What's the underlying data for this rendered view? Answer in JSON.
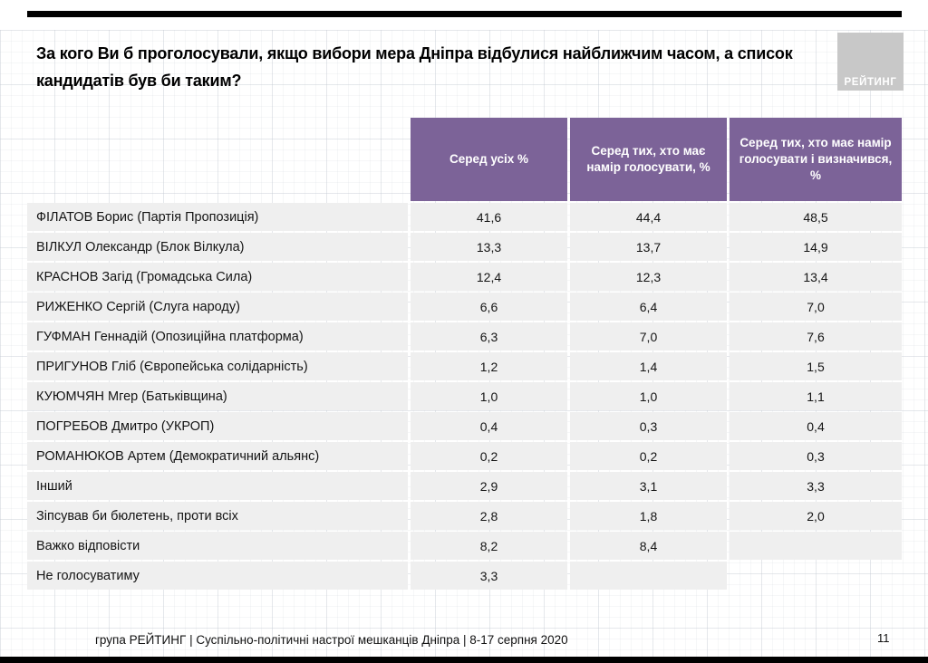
{
  "page": {
    "title": "За кого Ви б проголосували, якщо вибори мера Дніпра відбулися найближчим часом, а список кандидатів був би таким?",
    "logo_text": "РЕЙТИНГ",
    "footer_text": "група РЕЙТИНГ  | Суспільно-політичні настрої мешканців Дніпра | 8-17 серпня 2020",
    "page_number": "11"
  },
  "colors": {
    "header_purple": "#7c6398",
    "row_gray": "#efefef",
    "logo_gray": "#c8c8c8",
    "bar_black": "#000000"
  },
  "chart_data": {
    "type": "table",
    "title": "За кого Ви б проголосували, якщо вибори мера Дніпра відбулися найближчим часом, а список кандидатів був би таким?",
    "columns": [
      "Серед усіх %",
      "Серед тих, хто має намір голосувати, %",
      "Серед тих, хто має намір голосувати і визначився, %"
    ],
    "rows": [
      {
        "label": "ФІЛАТОВ Борис (Партія Пропозиція)",
        "values": [
          "41,6",
          "44,4",
          "48,5"
        ]
      },
      {
        "label": "ВІЛКУЛ Олександр (Блок Вілкула)",
        "values": [
          "13,3",
          "13,7",
          "14,9"
        ]
      },
      {
        "label": "КРАСНОВ Загід (Громадська Сила)",
        "values": [
          "12,4",
          "12,3",
          "13,4"
        ]
      },
      {
        "label": "РИЖЕНКО Сергій (Слуга народу)",
        "values": [
          "6,6",
          "6,4",
          "7,0"
        ]
      },
      {
        "label": "ГУФМАН Геннадій (Опозиційна платформа)",
        "values": [
          "6,3",
          "7,0",
          "7,6"
        ]
      },
      {
        "label": "ПРИГУНОВ Гліб (Європейська солідарність)",
        "values": [
          "1,2",
          "1,4",
          "1,5"
        ]
      },
      {
        "label": "КУЮМЧЯН Мгер (Батьківщина)",
        "values": [
          "1,0",
          "1,0",
          "1,1"
        ]
      },
      {
        "label": "ПОГРЕБОВ Дмитро (УКРОП)",
        "values": [
          "0,4",
          "0,3",
          "0,4"
        ]
      },
      {
        "label": "РОМАНЮКОВ Артем (Демократичний альянс)",
        "values": [
          "0,2",
          "0,2",
          "0,3"
        ]
      },
      {
        "label": "Інший",
        "values": [
          "2,9",
          "3,1",
          "3,3"
        ]
      },
      {
        "label": "Зіпсував би бюлетень, проти всіх",
        "values": [
          "2,8",
          "1,8",
          "2,0"
        ]
      },
      {
        "label": "Важко відповісти",
        "values": [
          "8,2",
          "8,4",
          ""
        ]
      },
      {
        "label": "Не голосуватиму",
        "values": [
          "3,3",
          "",
          null
        ]
      }
    ]
  }
}
